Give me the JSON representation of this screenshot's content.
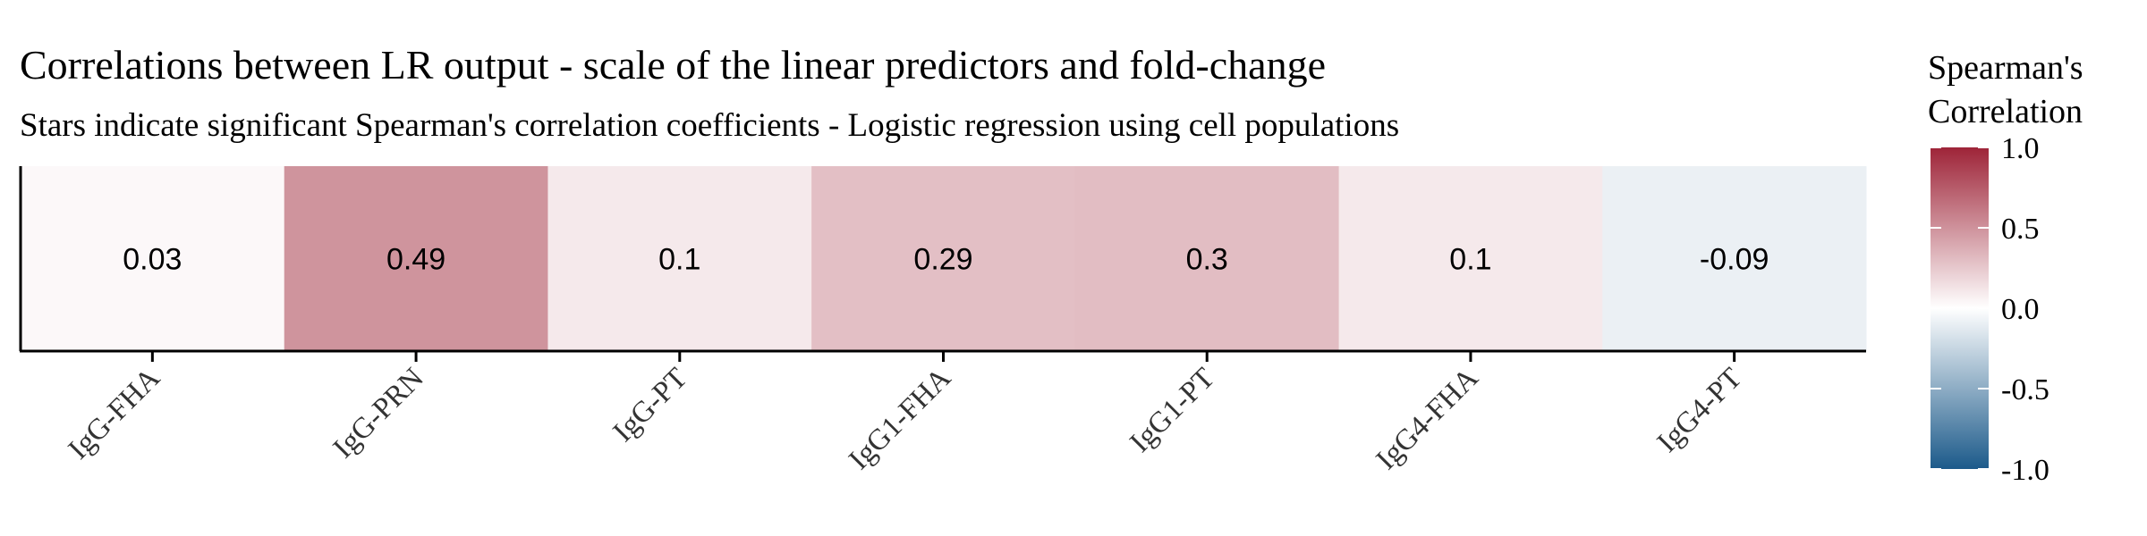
{
  "chart_data": {
    "type": "heatmap",
    "title": "Correlations between LR output - scale of the linear predictors and fold-change",
    "subtitle": "Stars indicate significant Spearman's correlation coefficients - Logistic regression using cell populations",
    "categories": [
      "IgG-FHA",
      "IgG-PRN",
      "IgG-PT",
      "IgG1-FHA",
      "IgG1-PT",
      "IgG4-FHA",
      "IgG4-PT"
    ],
    "values": [
      0.03,
      0.49,
      0.1,
      0.29,
      0.3,
      0.1,
      -0.09
    ],
    "value_labels": [
      "0.03",
      "0.49",
      "0.1",
      "0.29",
      "0.3",
      "0.1",
      "-0.09"
    ],
    "legend": {
      "title_line1": "Spearman's",
      "title_line2": "Correlation",
      "ticks": [
        1.0,
        0.5,
        0.0,
        -0.5,
        -1.0
      ],
      "tick_labels": [
        "1.0",
        "0.5",
        "0.0",
        "-0.5",
        "-1.0"
      ],
      "range": [
        -1,
        1
      ],
      "placement": "right"
    },
    "colors": {
      "low": "#1c5a8a",
      "mid": "#ffffff",
      "high": "#9e2438",
      "axis": "#000000"
    }
  }
}
